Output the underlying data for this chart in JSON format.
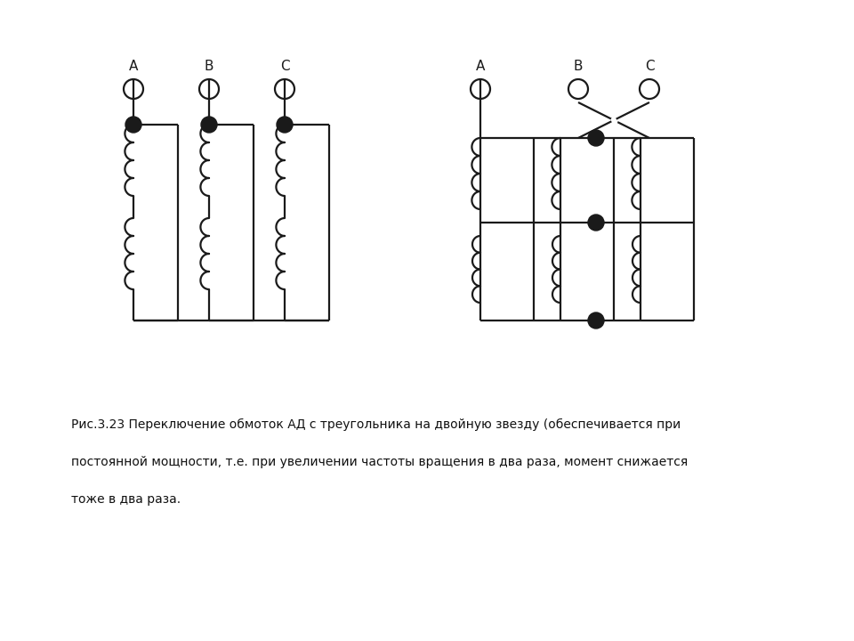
{
  "background_color": "#ffffff",
  "line_color": "#1a1a1a",
  "caption_line1": "Рис.3.23 Переключение обмоток АД с треугольника на двойную звезду (обеспечивается при",
  "caption_line2": "постоянной мощности, т.е. при увеличении частоты вращения в два раза, момент снижается",
  "caption_line3": "тоже в два раза."
}
